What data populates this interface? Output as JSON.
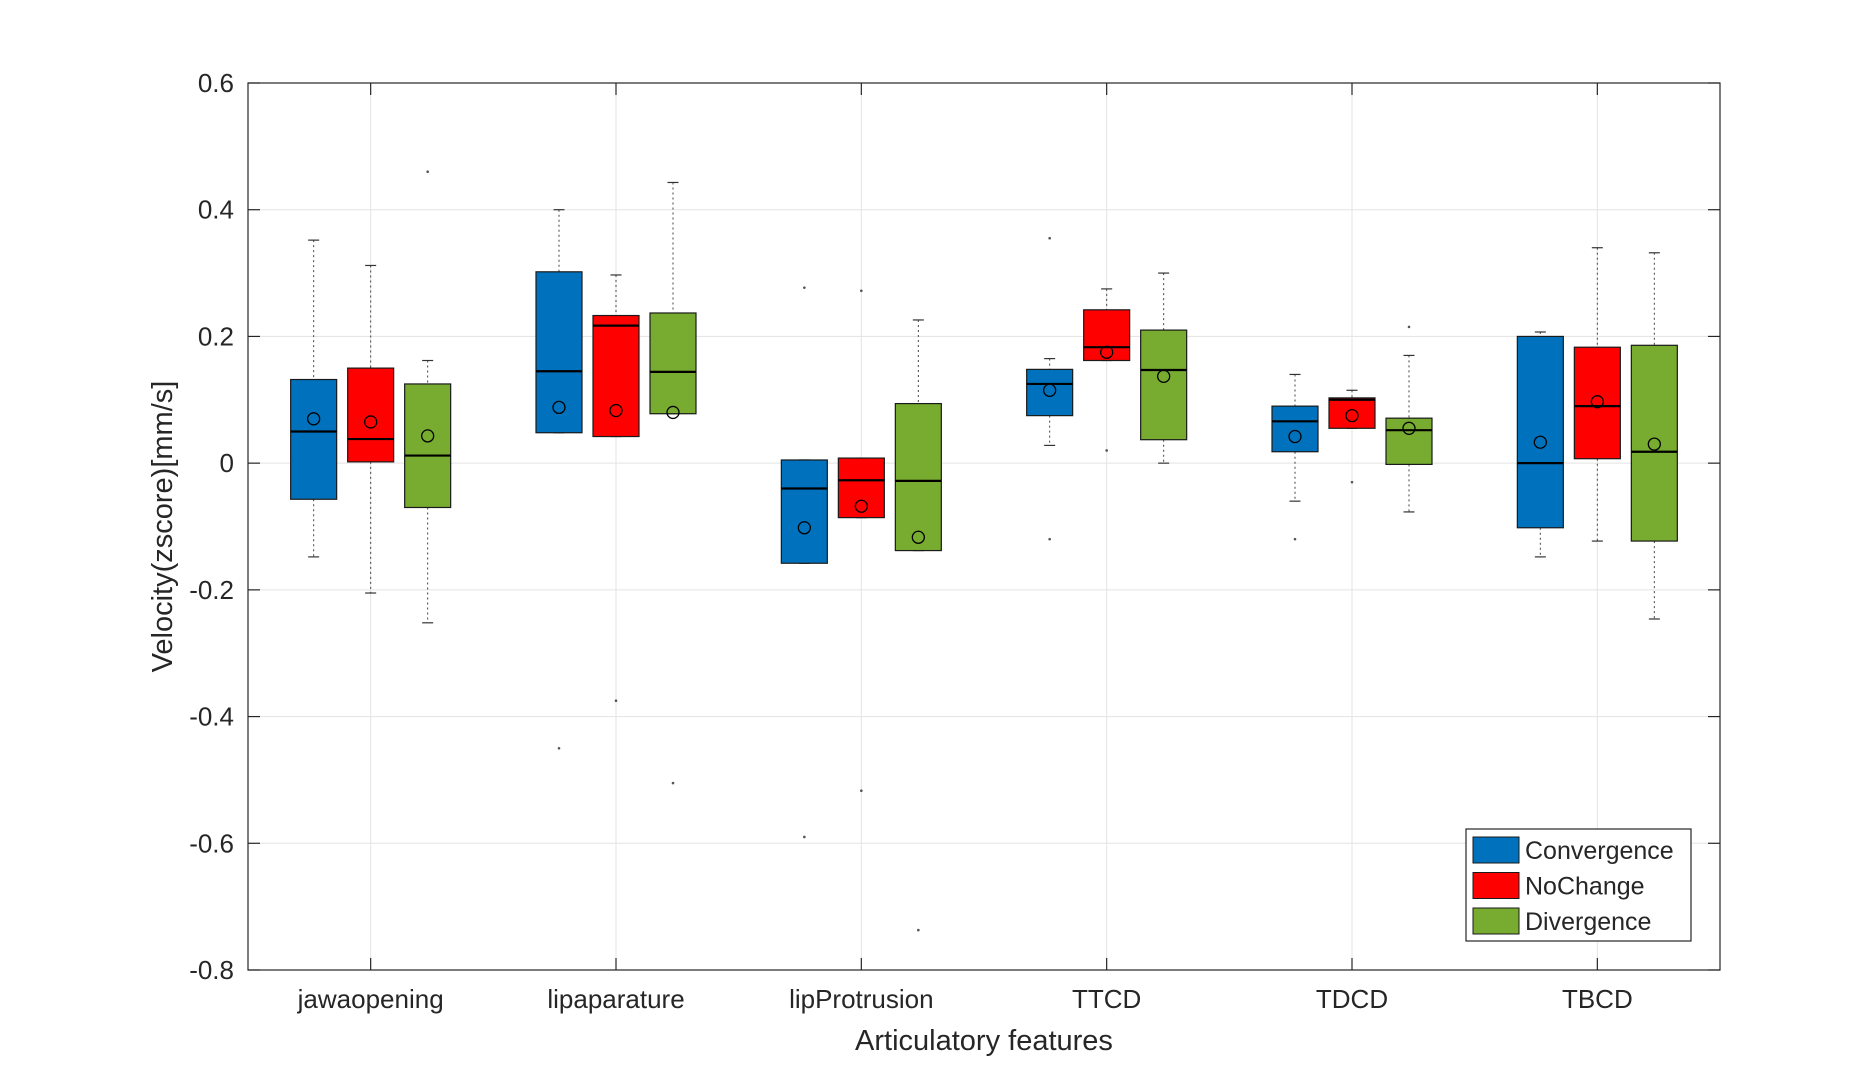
{
  "chart_data": {
    "type": "boxplot",
    "xlabel": "Articulatory features",
    "ylabel": "Velocity(zscore)[mm/s]",
    "ylim": [
      -0.8,
      0.6
    ],
    "yticks": [
      -0.8,
      -0.6,
      -0.4,
      -0.2,
      0,
      0.2,
      0.4,
      0.6
    ],
    "ytick_labels": [
      "-0.8",
      "-0.6",
      "-0.4",
      "-0.2",
      "0",
      "0.2",
      "0.4",
      "0.6"
    ],
    "grid": true,
    "legend_position": "bottom-right",
    "categories": [
      "jawaopening",
      "lipaparature",
      "lipProtrusion",
      "TTCD",
      "TDCD",
      "TBCD"
    ],
    "series": [
      {
        "name": "Convergence",
        "color": "#0072BD",
        "boxes": [
          {
            "whisker_low": -0.148,
            "q1": -0.057,
            "median": 0.05,
            "q3": 0.132,
            "whisker_high": 0.352,
            "mean": 0.07,
            "outliers": []
          },
          {
            "whisker_low": 0.048,
            "q1": 0.048,
            "median": 0.145,
            "q3": 0.302,
            "whisker_high": 0.4,
            "mean": 0.088,
            "outliers": [
              -0.45
            ]
          },
          {
            "whisker_low": -0.158,
            "q1": -0.158,
            "median": -0.04,
            "q3": 0.005,
            "whisker_high": 0.005,
            "mean": -0.102,
            "outliers": [
              0.277,
              -0.59
            ]
          },
          {
            "whisker_low": 0.028,
            "q1": 0.075,
            "median": 0.125,
            "q3": 0.148,
            "whisker_high": 0.165,
            "mean": 0.115,
            "outliers": [
              0.355,
              -0.12
            ]
          },
          {
            "whisker_low": -0.06,
            "q1": 0.018,
            "median": 0.066,
            "q3": 0.09,
            "whisker_high": 0.14,
            "mean": 0.042,
            "outliers": [
              -0.12
            ]
          },
          {
            "whisker_low": -0.148,
            "q1": -0.102,
            "median": 0.0,
            "q3": 0.2,
            "whisker_high": 0.207,
            "mean": 0.033,
            "outliers": []
          }
        ]
      },
      {
        "name": "NoChange",
        "color": "#FF0000",
        "boxes": [
          {
            "whisker_low": -0.205,
            "q1": 0.002,
            "median": 0.038,
            "q3": 0.15,
            "whisker_high": 0.312,
            "mean": 0.065,
            "outliers": []
          },
          {
            "whisker_low": 0.042,
            "q1": 0.042,
            "median": 0.217,
            "q3": 0.233,
            "whisker_high": 0.297,
            "mean": 0.083,
            "outliers": [
              -0.375
            ]
          },
          {
            "whisker_low": -0.086,
            "q1": -0.086,
            "median": -0.027,
            "q3": 0.008,
            "whisker_high": 0.008,
            "mean": -0.068,
            "outliers": [
              0.272,
              -0.517
            ]
          },
          {
            "whisker_low": 0.162,
            "q1": 0.162,
            "median": 0.183,
            "q3": 0.242,
            "whisker_high": 0.275,
            "mean": 0.175,
            "outliers": [
              0.02
            ]
          },
          {
            "whisker_low": 0.055,
            "q1": 0.055,
            "median": 0.1,
            "q3": 0.103,
            "whisker_high": 0.115,
            "mean": 0.075,
            "outliers": [
              -0.03
            ]
          },
          {
            "whisker_low": -0.123,
            "q1": 0.007,
            "median": 0.09,
            "q3": 0.183,
            "whisker_high": 0.34,
            "mean": 0.097,
            "outliers": []
          }
        ]
      },
      {
        "name": "Divergence",
        "color": "#77AC30",
        "boxes": [
          {
            "whisker_low": -0.252,
            "q1": -0.07,
            "median": 0.012,
            "q3": 0.125,
            "whisker_high": 0.162,
            "mean": 0.043,
            "outliers": [
              0.46
            ]
          },
          {
            "whisker_low": 0.078,
            "q1": 0.078,
            "median": 0.144,
            "q3": 0.237,
            "whisker_high": 0.443,
            "mean": 0.08,
            "outliers": [
              -0.505
            ]
          },
          {
            "whisker_low": -0.138,
            "q1": -0.138,
            "median": -0.028,
            "q3": 0.094,
            "whisker_high": 0.226,
            "mean": -0.117,
            "outliers": [
              -0.737
            ]
          },
          {
            "whisker_low": 0.0,
            "q1": 0.037,
            "median": 0.147,
            "q3": 0.21,
            "whisker_high": 0.3,
            "mean": 0.137,
            "outliers": []
          },
          {
            "whisker_low": -0.077,
            "q1": -0.002,
            "median": 0.052,
            "q3": 0.071,
            "whisker_high": 0.17,
            "mean": 0.055,
            "outliers": [
              0.215
            ]
          },
          {
            "whisker_low": -0.246,
            "q1": -0.123,
            "median": 0.018,
            "q3": 0.186,
            "whisker_high": 0.332,
            "mean": 0.03,
            "outliers": []
          }
        ]
      }
    ]
  }
}
